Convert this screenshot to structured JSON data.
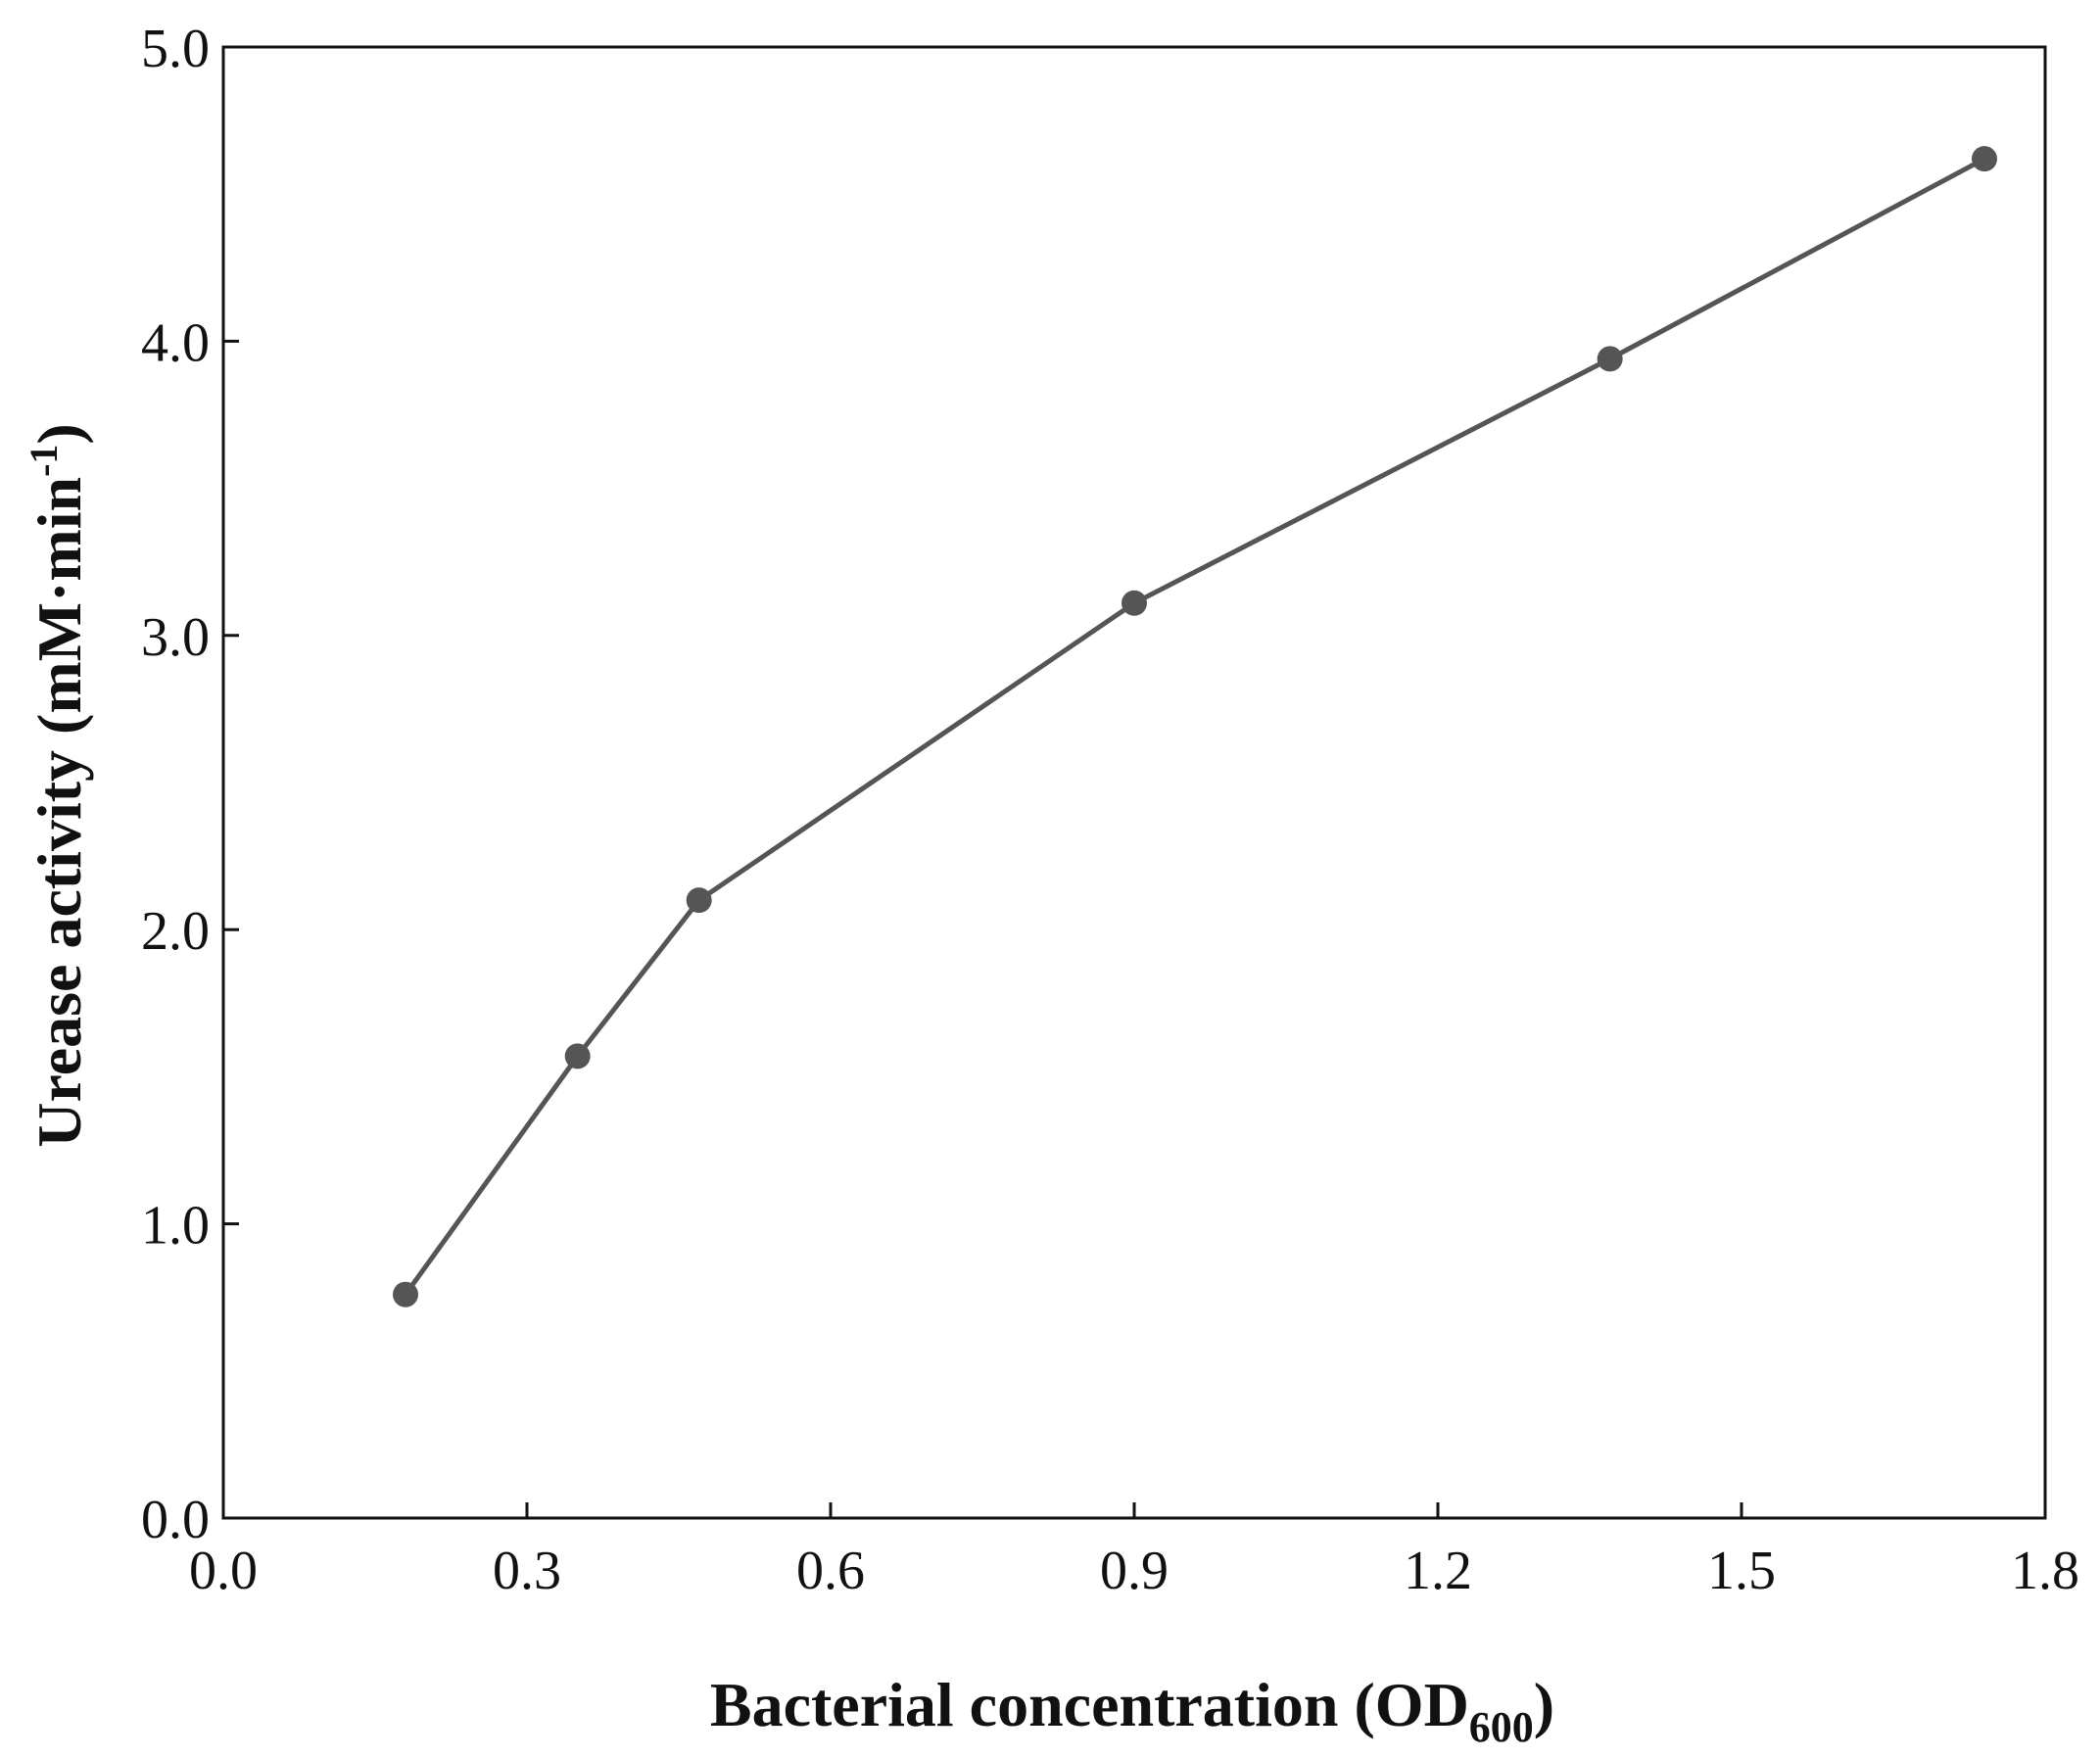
{
  "chart_data": {
    "type": "line",
    "x_axis": {
      "label": "Bacterial concentration (OD",
      "label_subscript": "600",
      "label_suffix": ")",
      "lim": [
        0.0,
        1.8
      ],
      "ticks": [
        0.0,
        0.3,
        0.6,
        0.9,
        1.2,
        1.5,
        1.8
      ],
      "tick_labels": [
        "0.0",
        "0.3",
        "0.6",
        "0.9",
        "1.2",
        "1.5",
        "1.8"
      ]
    },
    "y_axis": {
      "label": "Urease activity (mM·min",
      "label_superscript": "-1",
      "label_suffix": ")",
      "lim": [
        0.0,
        5.0
      ],
      "ticks": [
        0.0,
        1.0,
        2.0,
        3.0,
        4.0,
        5.0
      ],
      "tick_labels": [
        "0.0",
        "1.0",
        "2.0",
        "3.0",
        "4.0",
        "5.0"
      ]
    },
    "series": [
      {
        "x": [
          0.18,
          0.35,
          0.47,
          0.9,
          1.37,
          1.74
        ],
        "y": [
          0.76,
          1.57,
          2.1,
          3.11,
          3.94,
          4.62
        ],
        "color": "#555555"
      }
    ],
    "grid": false,
    "legend": "none"
  }
}
